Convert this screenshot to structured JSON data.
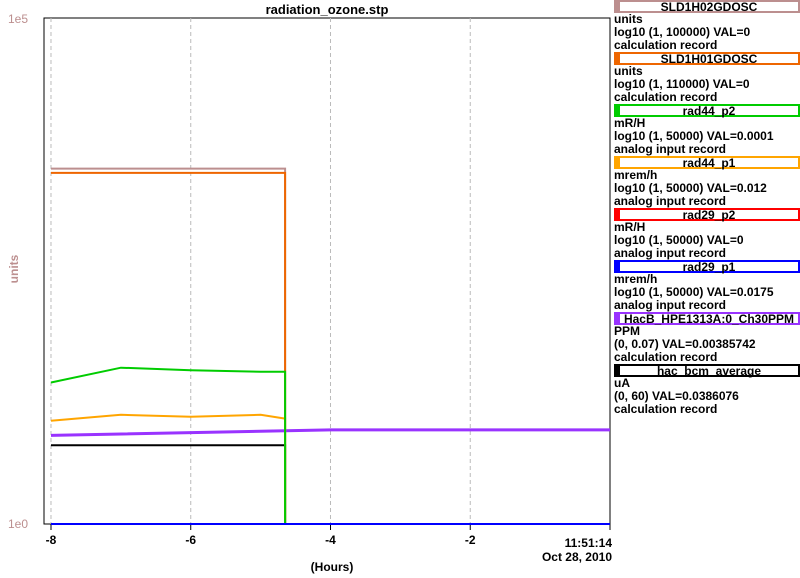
{
  "chart_data": {
    "type": "line",
    "title": "radiation_ozone.stp",
    "ylabel": "units",
    "y_tick_top": "1e5",
    "y_tick_bottom": "1e0",
    "xlabel": "(Hours)",
    "x_ticks": [
      -8,
      -6,
      -4,
      -2
    ],
    "xlim": [
      -8.1,
      0.0
    ],
    "timestamp": "11:51:14",
    "date": "Oct 28, 2010",
    "grid": true,
    "legend_position": "right",
    "series": [
      {
        "name": "SLD1H02GDOSC",
        "units": "units",
        "range": "log10 (1, 100000) VAL=0",
        "record": "calculation record",
        "color": "#bc8f8f",
        "values": [
          [
            -8.0,
            3250
          ],
          [
            -4.65,
            3250
          ],
          [
            -4.65,
            1
          ]
        ]
      },
      {
        "name": "SLD1H01GDOSC",
        "units": "units",
        "range": "log10 (1, 110000) VAL=0",
        "record": "calculation record",
        "color": "#ee6600",
        "values": [
          [
            -8.0,
            2950
          ],
          [
            -4.65,
            2950
          ],
          [
            -4.65,
            1
          ]
        ]
      },
      {
        "name": "rad44_p2",
        "units": "mR/H",
        "range": "log10 (1, 50000) VAL=0.0001",
        "record": "analog input record",
        "color": "#00cc00",
        "values": [
          [
            -8.0,
            25
          ],
          [
            -7.0,
            35
          ],
          [
            -6.0,
            33
          ],
          [
            -5.0,
            32
          ],
          [
            -4.65,
            32
          ],
          [
            -4.65,
            1
          ]
        ]
      },
      {
        "name": "rad44_p1",
        "units": "mrem/h",
        "range": "log10 (1, 50000) VAL=0.012",
        "record": "analog input record",
        "color": "#ffa500",
        "values": [
          [
            -8.0,
            10.5
          ],
          [
            -7.0,
            12
          ],
          [
            -6.0,
            11.5
          ],
          [
            -5.0,
            12
          ],
          [
            -4.65,
            11
          ],
          [
            -4.65,
            1
          ]
        ]
      },
      {
        "name": "rad29_p2",
        "units": "mR/H",
        "range": "log10 (1, 50000) VAL=0",
        "record": "analog input record",
        "color": "#ff0000",
        "values": [
          [
            -8.0,
            1
          ],
          [
            0.0,
            1
          ]
        ]
      },
      {
        "name": "rad29_p1",
        "units": "mrem/h",
        "range": "log10 (1, 50000) VAL=0.0175",
        "record": "analog input record",
        "color": "#0000ff",
        "values": [
          [
            -8.0,
            1
          ],
          [
            0.0,
            1
          ]
        ]
      },
      {
        "name": "HacB_HPE1313A:0_Ch30PPM",
        "units": "PPM",
        "range": "(0, 0.07) VAL=0.00385742",
        "record": "calculation record",
        "color": "#9933ff",
        "values": [
          [
            -8.0,
            7.5
          ],
          [
            -4.0,
            8.5
          ],
          [
            0.0,
            8.5
          ]
        ]
      },
      {
        "name": "hac_bcm_average",
        "units": "uA",
        "range": "(0, 60) VAL=0.0386076",
        "record": "calculation record",
        "color": "#000000",
        "values": [
          [
            -8.0,
            6
          ],
          [
            -4.65,
            6
          ],
          [
            -4.65,
            1
          ]
        ]
      }
    ]
  }
}
